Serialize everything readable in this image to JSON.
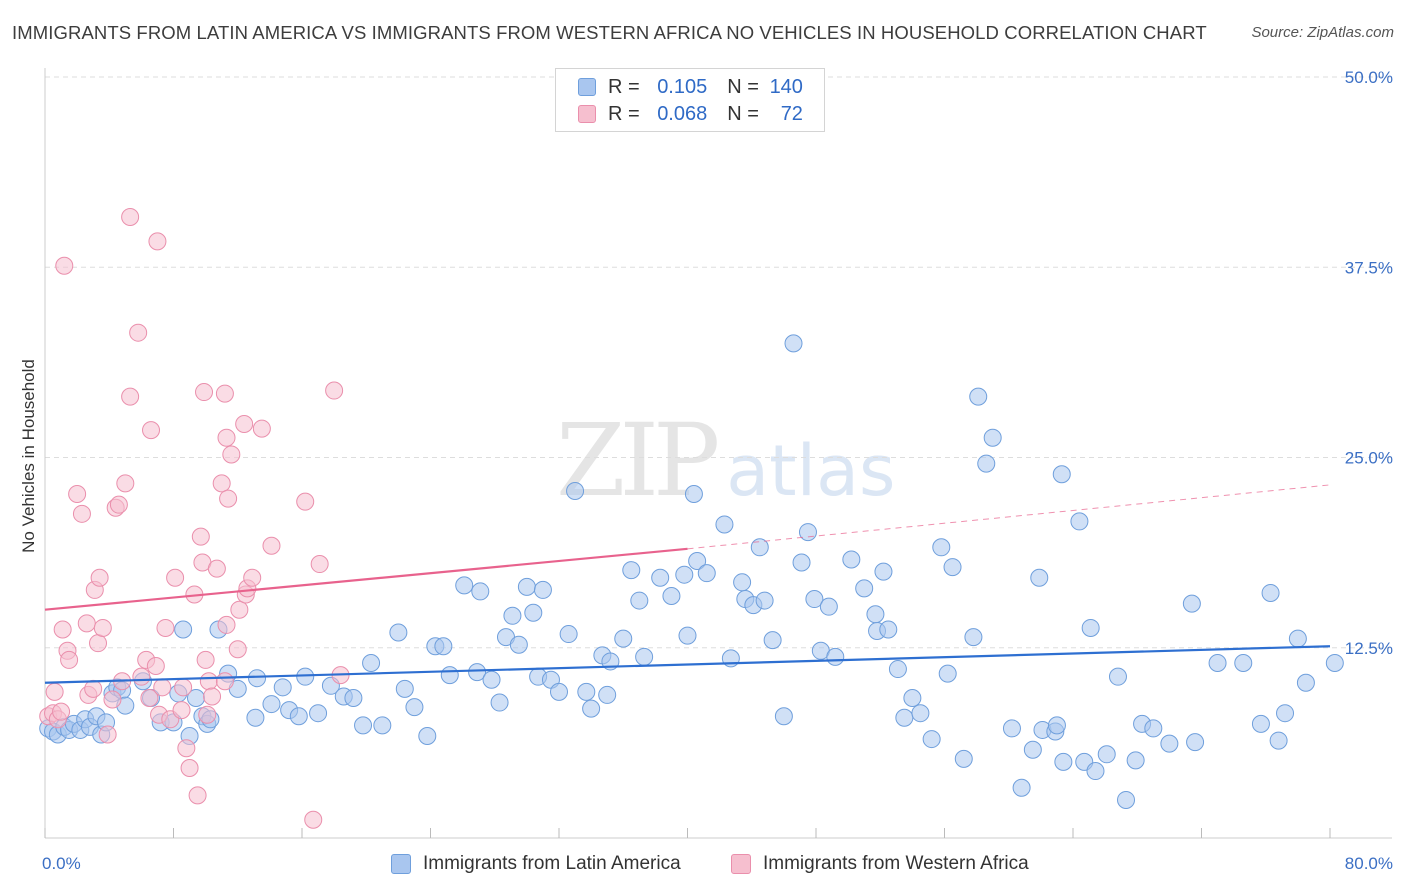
{
  "title": "IMMIGRANTS FROM LATIN AMERICA VS IMMIGRANTS FROM WESTERN AFRICA NO VEHICLES IN HOUSEHOLD CORRELATION CHART",
  "source": "Source: ZipAtlas.com",
  "watermark": {
    "zip": "ZIP",
    "atlas": "atlas"
  },
  "legend": {
    "rows": [
      {
        "r_label": "R =",
        "r_value": "0.105",
        "n_label": "N =",
        "n_value": "140"
      },
      {
        "r_label": "R =",
        "r_value": "0.068",
        "n_label": "N =",
        "n_value": "72"
      }
    ]
  },
  "bottom_legend": [
    "Immigrants from Latin America",
    "Immigrants from Western Africa"
  ],
  "colors": {
    "blue_fill": "#a9c6ef",
    "blue_stroke": "#6f9fdc",
    "blue_line": "#2e6fd1",
    "pink_fill": "#f6bfcf",
    "pink_stroke": "#ea8fac",
    "pink_line": "#e8628d",
    "grid": "#dddddd",
    "axis_text": "#3b6fc4"
  },
  "chart_data": {
    "type": "scatter",
    "title": "IMMIGRANTS FROM LATIN AMERICA VS IMMIGRANTS FROM WESTERN AFRICA NO VEHICLES IN HOUSEHOLD CORRELATION CHART",
    "xlabel": "",
    "ylabel": "No Vehicles in Household",
    "xlim": [
      0,
      80
    ],
    "ylim": [
      0,
      50
    ],
    "x_tick_labels": [
      "0.0%",
      "80.0%"
    ],
    "y_ticks": [
      12.5,
      25.0,
      37.5,
      50.0
    ],
    "y_tick_labels": [
      "12.5%",
      "25.0%",
      "37.5%",
      "50.0%"
    ],
    "series": [
      {
        "name": "Immigrants from Latin America",
        "R": 0.105,
        "N": 140,
        "trend": {
          "x": [
            0,
            80
          ],
          "y": [
            10.2,
            12.6
          ]
        },
        "points": [
          [
            0.2,
            7.2
          ],
          [
            0.5,
            7.0
          ],
          [
            0.8,
            6.8
          ],
          [
            1.2,
            7.3
          ],
          [
            1.5,
            7.1
          ],
          [
            1.8,
            7.5
          ],
          [
            2.2,
            7.1
          ],
          [
            2.5,
            7.8
          ],
          [
            2.8,
            7.3
          ],
          [
            3.2,
            8.0
          ],
          [
            3.5,
            6.8
          ],
          [
            3.8,
            7.6
          ],
          [
            4.2,
            9.5
          ],
          [
            4.5,
            9.9
          ],
          [
            4.8,
            9.7
          ],
          [
            5.0,
            8.7
          ],
          [
            6.1,
            10.3
          ],
          [
            6.6,
            9.2
          ],
          [
            7.2,
            7.6
          ],
          [
            8.0,
            7.6
          ],
          [
            8.6,
            13.7
          ],
          [
            8.3,
            9.5
          ],
          [
            9.0,
            6.7
          ],
          [
            9.4,
            9.2
          ],
          [
            9.8,
            8.0
          ],
          [
            10.1,
            7.5
          ],
          [
            10.3,
            7.8
          ],
          [
            10.8,
            13.7
          ],
          [
            11.4,
            10.8
          ],
          [
            12.0,
            9.8
          ],
          [
            13.1,
            7.9
          ],
          [
            13.2,
            10.5
          ],
          [
            14.1,
            8.8
          ],
          [
            14.8,
            9.9
          ],
          [
            15.2,
            8.4
          ],
          [
            15.8,
            8.0
          ],
          [
            16.2,
            10.6
          ],
          [
            17.0,
            8.2
          ],
          [
            17.8,
            10.0
          ],
          [
            18.6,
            9.3
          ],
          [
            19.2,
            9.2
          ],
          [
            19.8,
            7.4
          ],
          [
            20.3,
            11.5
          ],
          [
            21.0,
            7.4
          ],
          [
            22.0,
            13.5
          ],
          [
            22.4,
            9.8
          ],
          [
            23.0,
            8.6
          ],
          [
            23.8,
            6.7
          ],
          [
            24.3,
            12.6
          ],
          [
            24.8,
            12.6
          ],
          [
            25.2,
            10.7
          ],
          [
            26.1,
            16.6
          ],
          [
            26.9,
            10.9
          ],
          [
            27.1,
            16.2
          ],
          [
            27.8,
            10.4
          ],
          [
            28.3,
            8.9
          ],
          [
            28.7,
            13.2
          ],
          [
            29.1,
            14.6
          ],
          [
            29.5,
            12.7
          ],
          [
            30.0,
            16.5
          ],
          [
            30.4,
            14.8
          ],
          [
            30.7,
            10.6
          ],
          [
            31.0,
            16.3
          ],
          [
            31.5,
            10.4
          ],
          [
            32.0,
            9.6
          ],
          [
            32.6,
            13.4
          ],
          [
            33.0,
            22.8
          ],
          [
            33.7,
            9.6
          ],
          [
            34.0,
            8.5
          ],
          [
            34.7,
            12.0
          ],
          [
            35.0,
            9.4
          ],
          [
            35.2,
            11.6
          ],
          [
            36.0,
            13.1
          ],
          [
            36.5,
            17.6
          ],
          [
            37.0,
            15.6
          ],
          [
            37.3,
            11.9
          ],
          [
            38.3,
            17.1
          ],
          [
            39.0,
            15.9
          ],
          [
            39.8,
            17.3
          ],
          [
            40.0,
            13.3
          ],
          [
            40.4,
            22.6
          ],
          [
            40.6,
            18.2
          ],
          [
            41.2,
            17.4
          ],
          [
            42.3,
            20.6
          ],
          [
            42.7,
            11.8
          ],
          [
            43.4,
            16.8
          ],
          [
            43.6,
            15.7
          ],
          [
            44.1,
            15.3
          ],
          [
            44.5,
            19.1
          ],
          [
            44.8,
            15.6
          ],
          [
            45.3,
            13.0
          ],
          [
            46.0,
            8.0
          ],
          [
            46.6,
            32.5
          ],
          [
            47.1,
            18.1
          ],
          [
            47.5,
            20.1
          ],
          [
            47.9,
            15.7
          ],
          [
            48.3,
            12.3
          ],
          [
            48.8,
            15.2
          ],
          [
            49.2,
            11.9
          ],
          [
            50.2,
            18.3
          ],
          [
            51.0,
            16.4
          ],
          [
            51.7,
            14.7
          ],
          [
            51.8,
            13.6
          ],
          [
            52.2,
            17.5
          ],
          [
            52.5,
            13.7
          ],
          [
            53.1,
            11.1
          ],
          [
            53.5,
            7.9
          ],
          [
            54.0,
            9.2
          ],
          [
            54.5,
            8.2
          ],
          [
            55.2,
            6.5
          ],
          [
            55.8,
            19.1
          ],
          [
            56.2,
            10.8
          ],
          [
            56.5,
            17.8
          ],
          [
            57.2,
            5.2
          ],
          [
            57.8,
            13.2
          ],
          [
            58.1,
            29.0
          ],
          [
            58.6,
            24.6
          ],
          [
            59.0,
            26.3
          ],
          [
            60.2,
            7.2
          ],
          [
            60.8,
            3.3
          ],
          [
            61.5,
            5.8
          ],
          [
            61.9,
            17.1
          ],
          [
            62.1,
            7.1
          ],
          [
            62.9,
            7.0
          ],
          [
            63.0,
            7.4
          ],
          [
            63.3,
            23.9
          ],
          [
            63.4,
            5.0
          ],
          [
            64.4,
            20.8
          ],
          [
            64.7,
            5.0
          ],
          [
            65.1,
            13.8
          ],
          [
            65.4,
            4.4
          ],
          [
            66.1,
            5.5
          ],
          [
            66.8,
            10.6
          ],
          [
            67.3,
            2.5
          ],
          [
            67.9,
            5.1
          ],
          [
            68.3,
            7.5
          ],
          [
            69.0,
            7.2
          ],
          [
            70.0,
            6.2
          ],
          [
            71.4,
            15.4
          ],
          [
            71.6,
            6.3
          ],
          [
            73.0,
            11.5
          ],
          [
            74.6,
            11.5
          ],
          [
            75.7,
            7.5
          ],
          [
            76.3,
            16.1
          ],
          [
            76.8,
            6.4
          ],
          [
            77.2,
            8.2
          ],
          [
            78.0,
            13.1
          ],
          [
            78.5,
            10.2
          ],
          [
            80.3,
            11.5
          ]
        ]
      },
      {
        "name": "Immigrants from Western Africa",
        "R": 0.068,
        "N": 72,
        "trend": {
          "x": [
            0,
            40
          ],
          "y": [
            15.0,
            19.0
          ]
        },
        "trend_extension": {
          "x": [
            40,
            80
          ],
          "y": [
            19.0,
            23.2
          ]
        },
        "points": [
          [
            0.2,
            8.0
          ],
          [
            0.5,
            8.2
          ],
          [
            0.8,
            7.8
          ],
          [
            1.0,
            8.3
          ],
          [
            0.6,
            9.6
          ],
          [
            1.1,
            13.7
          ],
          [
            1.4,
            12.3
          ],
          [
            1.5,
            11.7
          ],
          [
            2.0,
            22.6
          ],
          [
            2.3,
            21.3
          ],
          [
            2.6,
            14.1
          ],
          [
            2.7,
            9.4
          ],
          [
            3.0,
            9.8
          ],
          [
            3.1,
            16.3
          ],
          [
            3.3,
            12.8
          ],
          [
            3.4,
            17.1
          ],
          [
            3.6,
            13.8
          ],
          [
            3.9,
            6.8
          ],
          [
            4.2,
            9.1
          ],
          [
            4.4,
            21.7
          ],
          [
            4.6,
            21.9
          ],
          [
            4.8,
            10.3
          ],
          [
            5.0,
            23.3
          ],
          [
            5.3,
            29.0
          ],
          [
            5.8,
            33.2
          ],
          [
            6.0,
            10.6
          ],
          [
            6.3,
            11.7
          ],
          [
            6.5,
            9.2
          ],
          [
            6.6,
            26.8
          ],
          [
            6.9,
            11.3
          ],
          [
            7.1,
            8.1
          ],
          [
            7.3,
            9.9
          ],
          [
            7.5,
            13.8
          ],
          [
            7.8,
            7.8
          ],
          [
            8.1,
            17.1
          ],
          [
            8.5,
            8.4
          ],
          [
            8.6,
            9.9
          ],
          [
            8.8,
            5.9
          ],
          [
            9.0,
            4.6
          ],
          [
            9.3,
            16.0
          ],
          [
            9.5,
            2.8
          ],
          [
            9.8,
            18.1
          ],
          [
            10.0,
            11.7
          ],
          [
            10.1,
            8.1
          ],
          [
            10.2,
            10.3
          ],
          [
            10.4,
            9.3
          ],
          [
            10.7,
            17.7
          ],
          [
            11.0,
            23.3
          ],
          [
            11.3,
            26.3
          ],
          [
            11.4,
            22.3
          ],
          [
            11.6,
            25.2
          ],
          [
            12.0,
            12.4
          ],
          [
            12.1,
            15.0
          ],
          [
            12.5,
            16.0
          ],
          [
            12.6,
            16.4
          ],
          [
            12.9,
            17.1
          ],
          [
            13.5,
            26.9
          ],
          [
            14.1,
            19.2
          ],
          [
            16.2,
            22.1
          ],
          [
            16.7,
            1.2
          ],
          [
            17.1,
            18.0
          ],
          [
            18.0,
            29.4
          ],
          [
            18.4,
            10.7
          ],
          [
            5.3,
            40.8
          ],
          [
            7.0,
            39.2
          ],
          [
            1.2,
            37.6
          ],
          [
            9.9,
            29.3
          ],
          [
            11.2,
            29.2
          ],
          [
            12.4,
            27.2
          ],
          [
            9.7,
            19.8
          ],
          [
            11.3,
            14.0
          ],
          [
            11.2,
            10.3
          ]
        ]
      }
    ]
  }
}
